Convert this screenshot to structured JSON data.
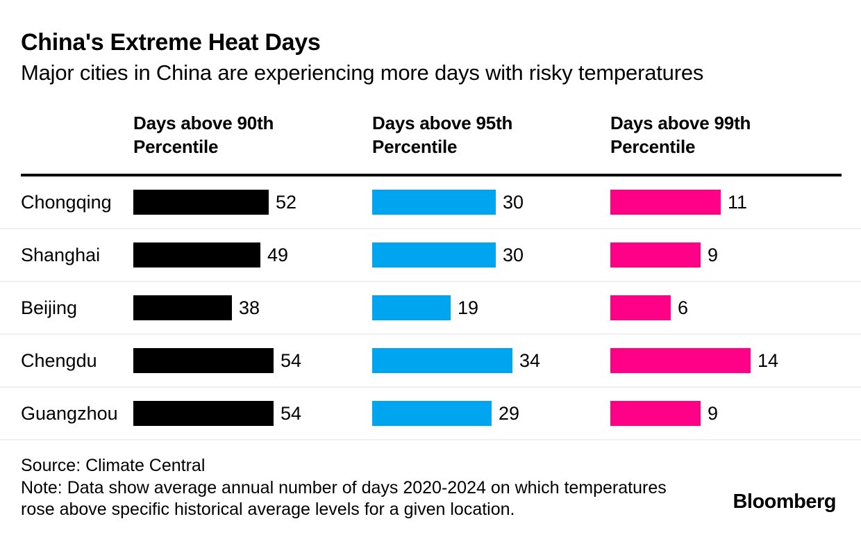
{
  "header": {
    "title": "China's Extreme Heat Days",
    "subtitle": "Major cities in China are experiencing more days with risky temperatures"
  },
  "chart_data": {
    "type": "bar",
    "orientation": "horizontal",
    "title": "China's Extreme Heat Days",
    "subtitle": "Major cities in China are experiencing more days with risky temperatures",
    "categories": [
      "Chongqing",
      "Shanghai",
      "Beijing",
      "Chengdu",
      "Guangzhou"
    ],
    "series": [
      {
        "name": "Days above 90th Percentile",
        "color": "#000000",
        "values": [
          52,
          49,
          38,
          54,
          54
        ]
      },
      {
        "name": "Days above 95th Percentile",
        "color": "#00A5F0",
        "values": [
          30,
          30,
          19,
          34,
          29
        ]
      },
      {
        "name": "Days above 99th Percentile",
        "color": "#FF0087",
        "values": [
          11,
          9,
          6,
          14,
          9
        ]
      }
    ],
    "value_labels": true,
    "layout": {
      "legend": "none",
      "grid": false,
      "columns_scaled_independently": true,
      "row_separators": true
    }
  },
  "footer": {
    "source": "Source: Climate Central",
    "note": "Note: Data show average annual number of days 2020-2024 on which temperatures rose above specific historical average levels for a given location.",
    "brand": "Bloomberg"
  }
}
